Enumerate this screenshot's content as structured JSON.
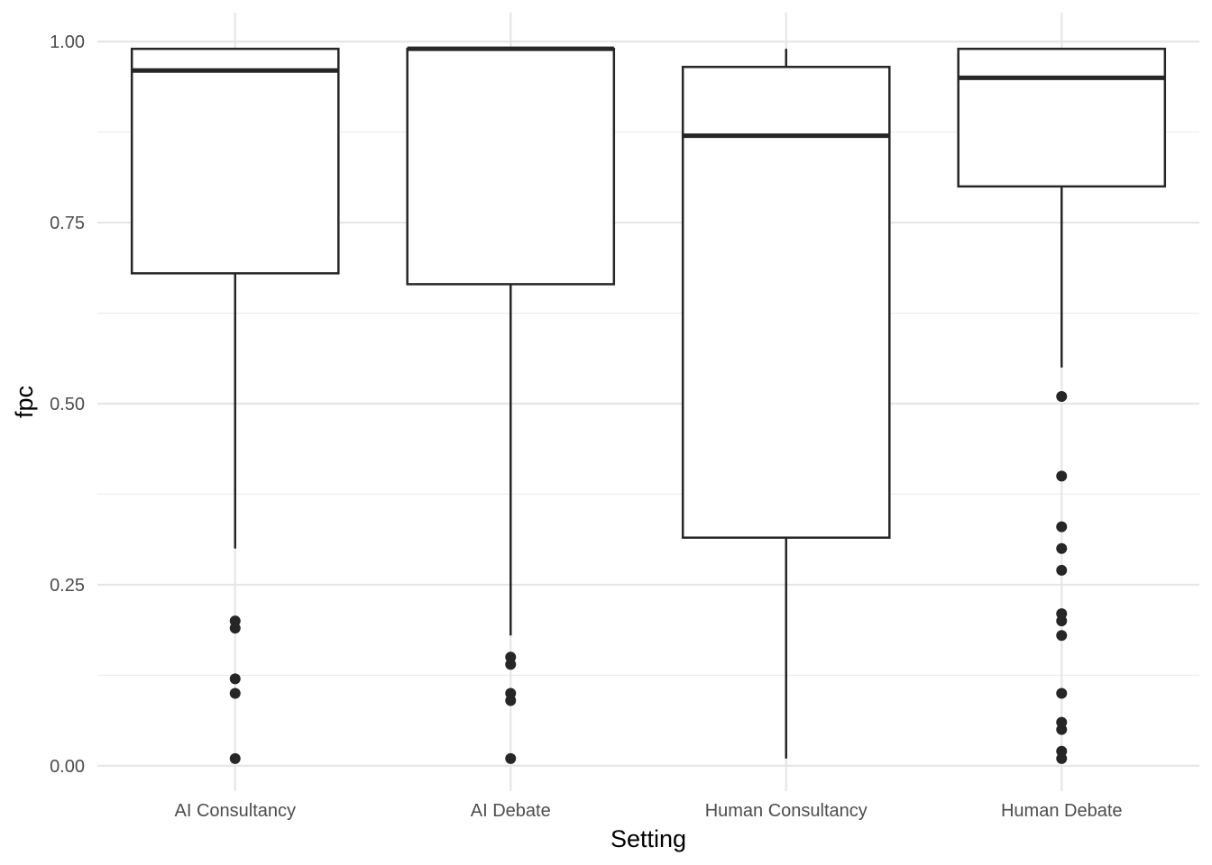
{
  "chart_data": {
    "type": "boxplot",
    "xlabel": "Setting",
    "ylabel": "fpc",
    "ylim": [
      -0.035,
      1.04
    ],
    "y_ticks": [
      0.0,
      0.25,
      0.5,
      0.75,
      1.0
    ],
    "y_tick_labels": [
      "0.00",
      "0.25",
      "0.50",
      "0.75",
      "1.00"
    ],
    "grid": true,
    "colors": {
      "box_stroke": "#262626",
      "box_fill": "#ffffff",
      "grid": "#e6e6e6",
      "background": "#ffffff"
    },
    "categories": [
      "AI Consultancy",
      "AI Debate",
      "Human Consultancy",
      "Human Debate"
    ],
    "boxes": [
      {
        "category": "AI Consultancy",
        "whisker_low": 0.3,
        "q1": 0.68,
        "median": 0.96,
        "q3": 0.99,
        "whisker_high": 0.99,
        "outliers": [
          0.2,
          0.19,
          0.12,
          0.1,
          0.01
        ]
      },
      {
        "category": "AI Debate",
        "whisker_low": 0.18,
        "q1": 0.665,
        "median": 0.99,
        "q3": 0.99,
        "whisker_high": 0.99,
        "outliers": [
          0.15,
          0.14,
          0.1,
          0.09,
          0.01
        ]
      },
      {
        "category": "Human Consultancy",
        "whisker_low": 0.01,
        "q1": 0.315,
        "median": 0.87,
        "q3": 0.965,
        "whisker_high": 0.99,
        "outliers": []
      },
      {
        "category": "Human Debate",
        "whisker_low": 0.55,
        "q1": 0.8,
        "median": 0.95,
        "q3": 0.99,
        "whisker_high": 0.99,
        "outliers": [
          0.51,
          0.4,
          0.33,
          0.3,
          0.27,
          0.21,
          0.2,
          0.18,
          0.1,
          0.06,
          0.05,
          0.02,
          0.01
        ]
      }
    ]
  }
}
